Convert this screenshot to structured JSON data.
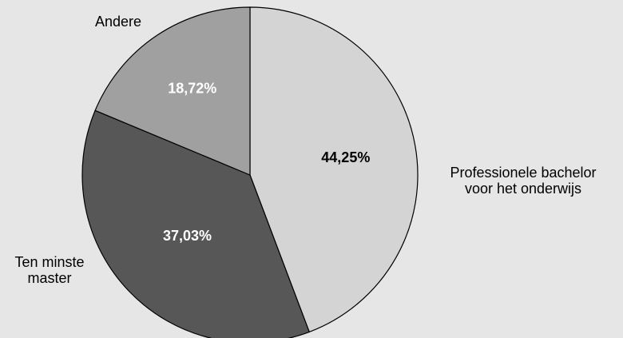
{
  "chart_data": {
    "type": "pie",
    "slices": [
      {
        "label": [
          "Professionele bachelor",
          "voor het onderwijs"
        ],
        "value": 44.25,
        "value_label": "44,25%",
        "color": "#d4d4d4",
        "value_color": "#000000"
      },
      {
        "label": [
          "Ten minste",
          "master"
        ],
        "value": 37.03,
        "value_label": "37,03%",
        "color": "#575757",
        "value_color": "#ffffff"
      },
      {
        "label": [
          "Andere"
        ],
        "value": 18.72,
        "value_label": "18,72%",
        "color": "#a0a0a0",
        "value_color": "#ffffff"
      }
    ],
    "start": "top",
    "direction": "clockwise",
    "outline_color": "#000000"
  }
}
